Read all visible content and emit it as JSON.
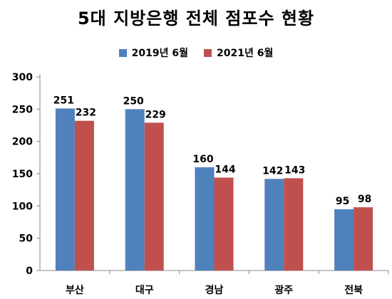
{
  "chart_data": {
    "type": "bar",
    "title": "5대 지방은행 전체 점포수 현황",
    "categories": [
      "부산",
      "대구",
      "경남",
      "광주",
      "전북"
    ],
    "series": [
      {
        "name": "2019년 6월",
        "values": [
          251,
          250,
          160,
          142,
          95
        ],
        "color": "#4F81BD"
      },
      {
        "name": "2021년 6월",
        "values": [
          232,
          229,
          144,
          143,
          98
        ],
        "color": "#C0504D"
      }
    ],
    "ylim": [
      0,
      300
    ],
    "yticks": [
      0,
      50,
      100,
      150,
      200,
      250,
      300
    ],
    "grid": false,
    "legend": "top-center",
    "xlabel": "",
    "ylabel": ""
  }
}
